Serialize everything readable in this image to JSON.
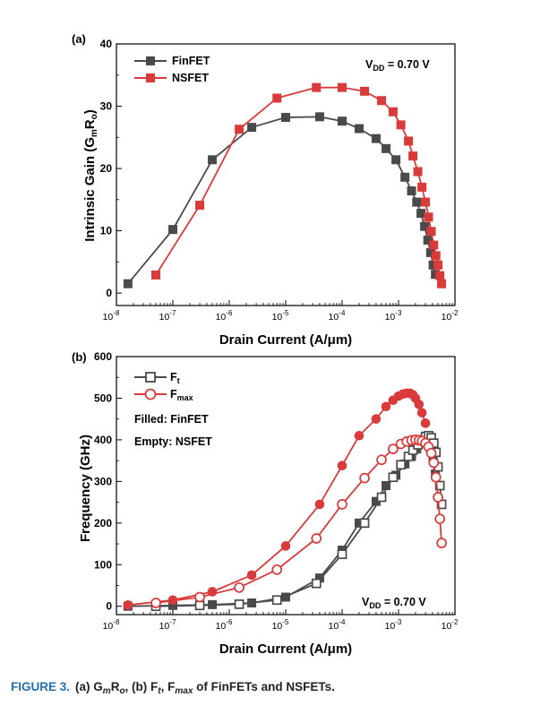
{
  "caption": {
    "label": "FIGURE 3.",
    "text_a_prefix": "(a) G",
    "text_a_sub": "m",
    "text_a_suffix": "R",
    "text_a_sub2": "o",
    "text_b_prefix": ", (b) F",
    "text_b_sub": "t",
    "text_b_mid": ", F",
    "text_b_sub2": "max",
    "text_end": " of FinFETs and NSFETs."
  },
  "colors": {
    "finfet": "#4a4a4a",
    "nsfet": "#d93a3a"
  },
  "chart_data": [
    {
      "type": "line",
      "panel_label": "(a)",
      "xlabel": "Drain Current (A/μm)",
      "ylabel_main": "Intrinsic Gain (G",
      "ylabel_sub1": "m",
      "ylabel_mid": "R",
      "ylabel_sub2": "o",
      "ylabel_end": ")",
      "x_scale": "log",
      "xlim": [
        1e-08,
        0.01
      ],
      "ylim": [
        -2,
        40
      ],
      "x_ticks": [
        {
          "base": "10",
          "exp": "-8"
        },
        {
          "base": "10",
          "exp": "-7"
        },
        {
          "base": "10",
          "exp": "-6"
        },
        {
          "base": "10",
          "exp": "-5"
        },
        {
          "base": "10",
          "exp": "-4"
        },
        {
          "base": "10",
          "exp": "-3"
        },
        {
          "base": "10",
          "exp": "-2"
        }
      ],
      "y_ticks": [
        0,
        10,
        20,
        30,
        40
      ],
      "annotation": {
        "main": "V",
        "sub": "DD",
        "rest": " = 0.70 V"
      },
      "legend_position": "top-left",
      "series": [
        {
          "name": "FinFET",
          "marker": "square-filled",
          "x": [
            1.6e-08,
            1e-07,
            5e-07,
            2.5e-06,
            1e-05,
            4e-05,
            0.0001,
            0.0002,
            0.0004,
            0.0006,
            0.0009,
            0.0013,
            0.0017,
            0.0021,
            0.0025,
            0.0029,
            0.0033,
            0.0037,
            0.0041,
            0.0045
          ],
          "y": [
            1.5,
            10.2,
            21.4,
            26.6,
            28.2,
            28.3,
            27.6,
            26.4,
            24.8,
            23.2,
            21.4,
            18.6,
            16.4,
            14.6,
            12.8,
            10.7,
            8.5,
            6.5,
            4.5,
            3.0
          ]
        },
        {
          "name": "NSFET",
          "marker": "square-filled",
          "x": [
            5e-08,
            3e-07,
            1.5e-06,
            7e-06,
            3.5e-05,
            0.0001,
            0.00025,
            0.0005,
            0.0008,
            0.0011,
            0.0015,
            0.0018,
            0.0022,
            0.0026,
            0.003,
            0.0034,
            0.0038,
            0.0042,
            0.0046,
            0.005,
            0.0054,
            0.0058
          ],
          "y": [
            2.9,
            14.1,
            26.3,
            31.3,
            33.0,
            33.0,
            32.4,
            30.9,
            29.1,
            27.0,
            24.4,
            22.0,
            19.5,
            17.0,
            14.6,
            12.2,
            9.9,
            7.7,
            6.0,
            4.5,
            2.8,
            1.5
          ]
        }
      ]
    },
    {
      "type": "line",
      "panel_label": "(b)",
      "xlabel": "Drain Current (A/μm)",
      "ylabel": "Frequency (GHz)",
      "x_scale": "log",
      "xlim": [
        1e-08,
        0.01
      ],
      "ylim": [
        -20,
        600
      ],
      "x_ticks": [
        {
          "base": "10",
          "exp": "-8"
        },
        {
          "base": "10",
          "exp": "-7"
        },
        {
          "base": "10",
          "exp": "-6"
        },
        {
          "base": "10",
          "exp": "-5"
        },
        {
          "base": "10",
          "exp": "-4"
        },
        {
          "base": "10",
          "exp": "-3"
        },
        {
          "base": "10",
          "exp": "-2"
        }
      ],
      "y_ticks": [
        0,
        100,
        200,
        300,
        400,
        500,
        600
      ],
      "annotation": {
        "main": "V",
        "sub": "DD",
        "rest": " = 0.70 V"
      },
      "notes": [
        "Filled: FinFET",
        "Empty: NSFET"
      ],
      "legend": [
        {
          "main": "F",
          "sub": "t",
          "marker": "square-open",
          "color_key": "finfet"
        },
        {
          "main": "F",
          "sub": "max",
          "marker": "circle-open",
          "color_key": "nsfet"
        }
      ],
      "legend_position": "top-left",
      "series": [
        {
          "name": "FinFET Ft",
          "marker": "square-filled",
          "color_key": "finfet",
          "x": [
            1.6e-08,
            1e-07,
            5e-07,
            2.5e-06,
            1e-05,
            4e-05,
            0.0001,
            0.0002,
            0.0004,
            0.0006,
            0.0009,
            0.0013,
            0.0017,
            0.0021,
            0.0025,
            0.0029,
            0.0033,
            0.0037,
            0.0041,
            0.0045
          ],
          "y": [
            0,
            2,
            4,
            8,
            22,
            68,
            135,
            200,
            252,
            290,
            315,
            342,
            360,
            378,
            392,
            398,
            393,
            378,
            352,
            318
          ]
        },
        {
          "name": "FinFET Fmax",
          "marker": "circle-filled",
          "color_key": "nsfet",
          "x": [
            1.6e-08,
            1e-07,
            5e-07,
            2.5e-06,
            1e-05,
            4e-05,
            0.0001,
            0.0002,
            0.0004,
            0.0006,
            0.0008,
            0.001,
            0.0012,
            0.0014,
            0.0016,
            0.0018,
            0.002,
            0.0023,
            0.0026,
            0.003
          ],
          "y": [
            3,
            15,
            35,
            75,
            145,
            245,
            338,
            410,
            450,
            480,
            495,
            505,
            510,
            512,
            512,
            508,
            500,
            485,
            465,
            440
          ]
        },
        {
          "name": "NSFET Ft",
          "marker": "square-open",
          "color_key": "finfet",
          "x": [
            5e-08,
            3e-07,
            1.5e-06,
            7e-06,
            3.5e-05,
            0.0001,
            0.00025,
            0.0005,
            0.0008,
            0.0011,
            0.0015,
            0.0018,
            0.0022,
            0.0026,
            0.003,
            0.0034,
            0.0038,
            0.0042,
            0.0046,
            0.005,
            0.0054,
            0.0058
          ],
          "y": [
            0,
            2,
            5,
            15,
            55,
            125,
            200,
            262,
            310,
            340,
            360,
            375,
            388,
            400,
            408,
            410,
            405,
            392,
            370,
            335,
            290,
            245
          ]
        },
        {
          "name": "NSFET Fmax",
          "marker": "circle-open",
          "color_key": "nsfet",
          "x": [
            5e-08,
            3e-07,
            1.5e-06,
            7e-06,
            3.5e-05,
            0.0001,
            0.00025,
            0.0005,
            0.0008,
            0.0011,
            0.0014,
            0.0017,
            0.002,
            0.0023,
            0.0026,
            0.003,
            0.0034,
            0.0038,
            0.0042,
            0.0046,
            0.005,
            0.0054,
            0.0058
          ],
          "y": [
            8,
            22,
            45,
            88,
            163,
            245,
            308,
            352,
            378,
            390,
            396,
            399,
            400,
            399,
            397,
            392,
            383,
            368,
            345,
            310,
            262,
            210,
            152
          ]
        }
      ]
    }
  ]
}
